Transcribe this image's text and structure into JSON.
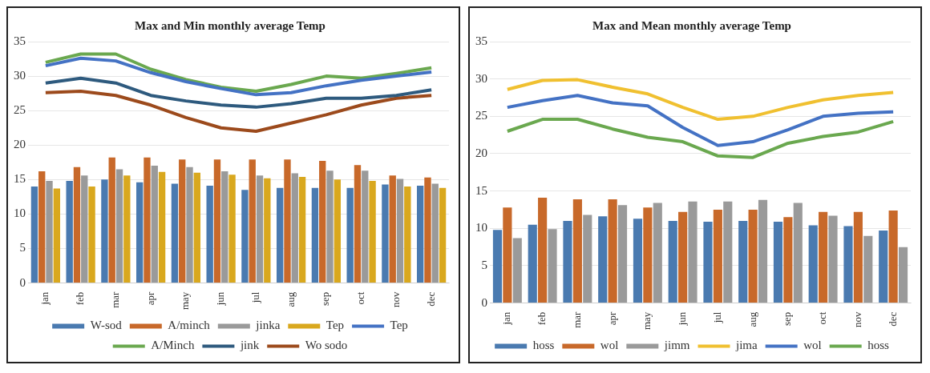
{
  "chart_data": [
    {
      "type": "bar",
      "title": "Max and Min monthly average Temp",
      "categories": [
        "jan",
        "feb",
        "mar",
        "apr",
        "may",
        "jun",
        "jul",
        "aug",
        "sep",
        "oct",
        "nov",
        "dec"
      ],
      "ylim": [
        0,
        35
      ],
      "yticks": [
        0,
        5,
        10,
        15,
        20,
        25,
        30,
        35
      ],
      "grid": "y",
      "legend": "bottom",
      "marker": "none",
      "series": [
        {
          "name": "W-sod",
          "color": "#4a7ab0",
          "values": [
            14,
            14.8,
            15,
            14.6,
            14.4,
            14.1,
            13.5,
            13.8,
            13.8,
            13.8,
            14.3,
            14.1
          ]
        },
        {
          "name": "A/minch",
          "color": "#c8692a",
          "values": [
            16.2,
            16.8,
            18.2,
            18.2,
            17.9,
            17.9,
            17.9,
            17.9,
            17.7,
            17.1,
            15.6,
            15.3
          ]
        },
        {
          "name": "jinka",
          "color": "#9a9a9a",
          "values": [
            14.8,
            15.6,
            16.5,
            17,
            16.8,
            16.2,
            15.6,
            15.9,
            16.3,
            16.3,
            15.1,
            14.4
          ]
        },
        {
          "name": "Tep",
          "color": "#d9a81e",
          "values": [
            13.7,
            14,
            15.6,
            16.1,
            16,
            15.7,
            15.2,
            15.4,
            15,
            14.8,
            14,
            13.8
          ]
        },
        {
          "name": "Tep",
          "type": "line",
          "color": "#4472c4",
          "values": [
            31.5,
            32.6,
            32.2,
            30.5,
            29.2,
            28.2,
            27.3,
            27.6,
            28.6,
            29.4,
            30,
            30.6
          ]
        },
        {
          "name": "A/Minch",
          "type": "line",
          "color": "#6aa84f",
          "values": [
            32,
            33.2,
            33.2,
            31,
            29.5,
            28.4,
            27.8,
            28.8,
            30,
            29.7,
            30.4,
            31.2
          ]
        },
        {
          "name": "jink",
          "type": "line",
          "color": "#2e5a7e",
          "values": [
            29,
            29.7,
            29,
            27.2,
            26.4,
            25.8,
            25.5,
            26,
            26.8,
            26.8,
            27.2,
            28
          ]
        },
        {
          "name": "Wo sodo",
          "type": "line",
          "color": "#9c4a1c",
          "values": [
            27.6,
            27.8,
            27.2,
            25.8,
            24,
            22.5,
            22,
            23.2,
            24.4,
            25.8,
            26.8,
            27.2
          ]
        }
      ]
    },
    {
      "type": "bar",
      "title": "Max and Mean monthly average Temp",
      "categories": [
        "jan",
        "feb",
        "mar",
        "apr",
        "may",
        "jun",
        "jul",
        "aug",
        "sep",
        "oct",
        "nov",
        "dec"
      ],
      "ylim": [
        0,
        35
      ],
      "yticks": [
        0,
        5,
        10,
        15,
        20,
        25,
        30,
        35
      ],
      "grid": "y",
      "legend": "bottom",
      "marker": "none",
      "series": [
        {
          "name": "hoss",
          "color": "#4a7ab0",
          "values": [
            9.8,
            10.5,
            11,
            11.6,
            11.3,
            11,
            10.9,
            11,
            10.9,
            10.4,
            10.3,
            9.7
          ]
        },
        {
          "name": "wol",
          "color": "#c8692a",
          "values": [
            12.8,
            14.1,
            13.9,
            13.9,
            12.8,
            12.2,
            12.5,
            12.5,
            11.5,
            12.2,
            12.2,
            12.4
          ]
        },
        {
          "name": "jimm",
          "color": "#9a9a9a",
          "values": [
            8.7,
            9.9,
            11.8,
            13.1,
            13.4,
            13.6,
            13.6,
            13.8,
            13.4,
            11.7,
            9,
            7.5
          ]
        },
        {
          "name": "jima",
          "type": "line",
          "color": "#f0c030",
          "values": [
            28.6,
            29.8,
            29.9,
            28.9,
            28,
            26.2,
            24.6,
            25,
            26.2,
            27.2,
            27.8,
            28.2
          ]
        },
        {
          "name": "wol",
          "type": "line",
          "color": "#4472c4",
          "values": [
            26.2,
            27.1,
            27.8,
            26.8,
            26.4,
            23.5,
            21.1,
            21.6,
            23.2,
            25,
            25.4,
            25.6
          ]
        },
        {
          "name": "hoss",
          "type": "line",
          "color": "#6aa84f",
          "values": [
            23,
            24.6,
            24.6,
            23.3,
            22.2,
            21.6,
            19.7,
            19.5,
            21.4,
            22.3,
            22.9,
            24.3
          ]
        }
      ]
    }
  ]
}
